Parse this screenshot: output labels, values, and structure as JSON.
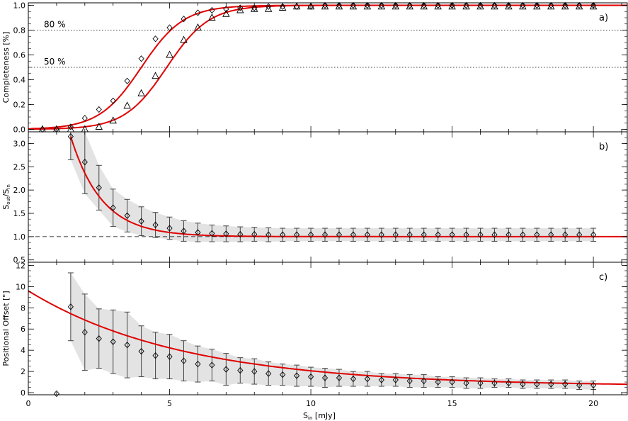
{
  "chart_data": [
    {
      "panel_tag": "a)",
      "type": "scatter",
      "ylabel": "Completeness [%]",
      "xlim": [
        0,
        21.2
      ],
      "ylim": [
        -0.02,
        1.02
      ],
      "yticks": [
        "0.0",
        "0.2",
        "0.4",
        "0.6",
        "0.8",
        "1.0"
      ],
      "reference_lines": [
        {
          "y": 0.8,
          "label": "80 %"
        },
        {
          "y": 0.5,
          "label": "50 %"
        }
      ],
      "series": [
        {
          "marker": "diamond",
          "x": [
            0.5,
            1.0,
            1.5,
            2.0,
            2.5,
            3.0,
            3.5,
            4.0,
            4.5,
            5.0,
            5.5,
            6.0,
            6.5,
            7.0,
            7.5,
            8.0,
            8.5,
            9.0,
            9.5,
            10.0,
            10.5,
            11.0,
            11.5,
            12.0,
            12.5,
            13.0,
            13.5,
            14.0,
            14.5,
            15.0,
            15.5,
            16.0,
            16.5,
            17.0,
            17.5,
            18.0,
            18.5,
            19.0,
            19.5,
            20.0
          ],
          "y": [
            0.0,
            0.0,
            0.02,
            0.09,
            0.16,
            0.23,
            0.39,
            0.57,
            0.73,
            0.82,
            0.89,
            0.94,
            0.96,
            0.97,
            0.98,
            0.98,
            0.99,
            0.99,
            0.99,
            0.99,
            1.0,
            1.0,
            1.0,
            1.0,
            1.0,
            1.0,
            1.0,
            1.0,
            1.0,
            1.0,
            1.0,
            1.0,
            1.0,
            1.0,
            1.0,
            1.0,
            1.0,
            1.0,
            1.0,
            1.0
          ]
        },
        {
          "marker": "triangle",
          "x": [
            0.5,
            1.0,
            1.5,
            2.0,
            2.5,
            3.0,
            3.5,
            4.0,
            4.5,
            5.0,
            5.5,
            6.0,
            6.5,
            7.0,
            7.5,
            8.0,
            8.5,
            9.0,
            9.5,
            10.0,
            10.5,
            11.0,
            11.5,
            12.0,
            12.5,
            13.0,
            13.5,
            14.0,
            14.5,
            15.0,
            15.5,
            16.0,
            16.5,
            17.0,
            17.5,
            18.0,
            18.5,
            19.0,
            19.5,
            20.0
          ],
          "y": [
            0.0,
            0.0,
            0.0,
            0.0,
            0.02,
            0.07,
            0.19,
            0.29,
            0.43,
            0.6,
            0.72,
            0.82,
            0.9,
            0.93,
            0.96,
            0.97,
            0.97,
            0.98,
            0.99,
            0.99,
            0.99,
            0.99,
            0.99,
            0.99,
            0.99,
            0.99,
            0.99,
            0.99,
            0.99,
            0.99,
            0.99,
            0.99,
            0.99,
            0.99,
            0.99,
            0.99,
            0.99,
            0.99,
            0.99,
            0.99
          ]
        }
      ],
      "fits": [
        {
          "shape": "logistic",
          "midpoint": 4.0,
          "scale": 0.75,
          "color": "#e00000"
        },
        {
          "shape": "logistic",
          "midpoint": 4.9,
          "scale": 0.75,
          "color": "#e00000"
        }
      ]
    },
    {
      "panel_tag": "b)",
      "type": "scatter",
      "ylabel": "S_out/S_in",
      "xlim": [
        0,
        21.2
      ],
      "ylim": [
        0.45,
        3.25
      ],
      "yticks": [
        "0.5",
        "1.0",
        "1.5",
        "2.0",
        "2.5",
        "3.0"
      ],
      "reference_lines": [
        {
          "y": 1.0
        }
      ],
      "series": [
        {
          "marker": "diamond",
          "x": [
            1.5,
            2.0,
            2.5,
            3.0,
            3.5,
            4.0,
            4.5,
            5.0,
            5.5,
            6.0,
            6.5,
            7.0,
            7.5,
            8.0,
            8.5,
            9.0,
            9.5,
            10.0,
            10.5,
            11.0,
            11.5,
            12.0,
            12.5,
            13.0,
            13.5,
            14.0,
            14.5,
            15.0,
            15.5,
            16.0,
            16.5,
            17.0,
            17.5,
            18.0,
            18.5,
            19.0,
            19.5,
            20.0
          ],
          "y": [
            3.15,
            2.6,
            2.05,
            1.62,
            1.45,
            1.33,
            1.25,
            1.18,
            1.12,
            1.09,
            1.07,
            1.06,
            1.05,
            1.05,
            1.04,
            1.04,
            1.04,
            1.04,
            1.04,
            1.04,
            1.04,
            1.04,
            1.04,
            1.04,
            1.04,
            1.04,
            1.04,
            1.04,
            1.04,
            1.04,
            1.04,
            1.04,
            1.04,
            1.04,
            1.04,
            1.04,
            1.04,
            1.04
          ],
          "yerr": [
            0.5,
            0.68,
            0.48,
            0.4,
            0.35,
            0.31,
            0.27,
            0.24,
            0.22,
            0.2,
            0.18,
            0.17,
            0.16,
            0.15,
            0.15,
            0.14,
            0.14,
            0.14,
            0.14,
            0.14,
            0.14,
            0.14,
            0.14,
            0.14,
            0.14,
            0.14,
            0.14,
            0.14,
            0.14,
            0.14,
            0.14,
            0.14,
            0.14,
            0.14,
            0.14,
            0.14,
            0.14,
            0.14
          ]
        }
      ],
      "fits": [
        {
          "shape": "exponential",
          "x_from": 1.5,
          "start_y": 3.15,
          "asymptote": 1.0,
          "scale": 1.1,
          "color": "#e00000"
        }
      ]
    },
    {
      "panel_tag": "c)",
      "type": "scatter",
      "ylabel": "Positional Offset [\"]",
      "xlabel": "S_in [mJy]",
      "xlim": [
        0,
        21.2
      ],
      "ylim": [
        -0.2,
        12.3
      ],
      "xticks": [
        "0",
        "5",
        "10",
        "15",
        "20"
      ],
      "yticks": [
        "0",
        "2",
        "4",
        "6",
        "8",
        "10",
        "12"
      ],
      "series": [
        {
          "marker": "diamond",
          "x": [
            1.0,
            1.5,
            2.0,
            2.5,
            3.0,
            3.5,
            4.0,
            4.5,
            5.0,
            5.5,
            6.0,
            6.5,
            7.0,
            7.5,
            8.0,
            8.5,
            9.0,
            9.5,
            10.0,
            10.5,
            11.0,
            11.5,
            12.0,
            12.5,
            13.0,
            13.5,
            14.0,
            14.5,
            15.0,
            15.5,
            16.0,
            16.5,
            17.0,
            17.5,
            18.0,
            18.5,
            19.0,
            19.5,
            20.0
          ],
          "y": [
            -0.1,
            8.1,
            5.7,
            5.1,
            4.8,
            4.5,
            3.9,
            3.5,
            3.4,
            3.0,
            2.7,
            2.6,
            2.2,
            2.1,
            2.0,
            1.8,
            1.7,
            1.6,
            1.5,
            1.4,
            1.4,
            1.3,
            1.3,
            1.2,
            1.2,
            1.1,
            1.1,
            1.0,
            1.0,
            0.9,
            0.9,
            0.9,
            0.9,
            0.8,
            0.8,
            0.8,
            0.8,
            0.7,
            0.7
          ],
          "yerr": [
            0,
            3.2,
            3.6,
            2.8,
            3.0,
            3.1,
            2.4,
            2.2,
            2.1,
            1.9,
            1.7,
            1.5,
            1.5,
            1.2,
            1.2,
            1.1,
            1.0,
            1.0,
            0.9,
            0.9,
            0.8,
            0.7,
            0.7,
            0.6,
            0.6,
            0.6,
            0.6,
            0.5,
            0.5,
            0.5,
            0.5,
            0.4,
            0.4,
            0.4,
            0.4,
            0.4,
            0.4,
            0.4,
            0.4
          ]
        }
      ],
      "fits": [
        {
          "shape": "exponential",
          "x_from": 0,
          "start_y": 9.6,
          "asymptote": 0.6,
          "scale": 5.5,
          "color": "#e00000"
        }
      ]
    }
  ]
}
